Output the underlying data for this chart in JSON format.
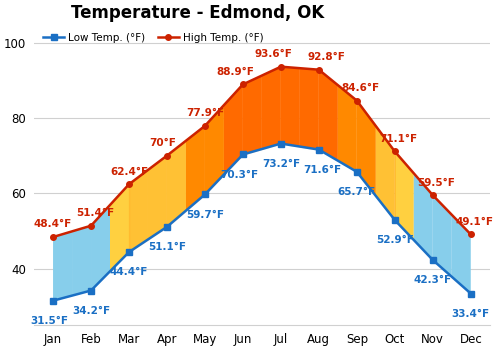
{
  "title": "Temperature - Edmond, OK",
  "months": [
    "Jan",
    "Feb",
    "Mar",
    "Apr",
    "May",
    "Jun",
    "Jul",
    "Aug",
    "Sep",
    "Oct",
    "Nov",
    "Dec"
  ],
  "low_temps": [
    31.5,
    34.2,
    44.4,
    51.1,
    59.7,
    70.3,
    73.2,
    71.6,
    65.7,
    52.9,
    42.3,
    33.4
  ],
  "high_temps": [
    48.4,
    51.4,
    62.4,
    70.0,
    77.9,
    88.9,
    93.6,
    92.8,
    84.6,
    71.1,
    59.5,
    49.1
  ],
  "low_labels": [
    "31.5°F",
    "34.2°F",
    "44.4°F",
    "51.1°F",
    "59.7°F",
    "70.3°F",
    "73.2°F",
    "71.6°F",
    "65.7°F",
    "52.9°F",
    "42.3°F",
    "33.4°F"
  ],
  "high_labels": [
    "48.4°F",
    "51.4°F",
    "62.4°F",
    "70°F",
    "77.9°F",
    "88.9°F",
    "93.6°F",
    "92.8°F",
    "84.6°F",
    "71.1°F",
    "59.5°F",
    "49.1°F"
  ],
  "low_color": "#1a6fc4",
  "high_color": "#cc2200",
  "ylim": [
    25,
    105
  ],
  "yticks": [
    40,
    60,
    80,
    100
  ],
  "background_color": "#ffffff",
  "grid_color": "#d0d0d0",
  "title_fontsize": 12,
  "label_fontsize": 7.5,
  "segment_colors": [
    "#87CEEB",
    "#87CEEB",
    "#FFD040",
    "#FFD040",
    "#FF8C00",
    "#FF6600",
    "#FF6600",
    "#FF6600",
    "#FF8C00",
    "#FFD040",
    "#87CEEB",
    "#87CEEB"
  ]
}
